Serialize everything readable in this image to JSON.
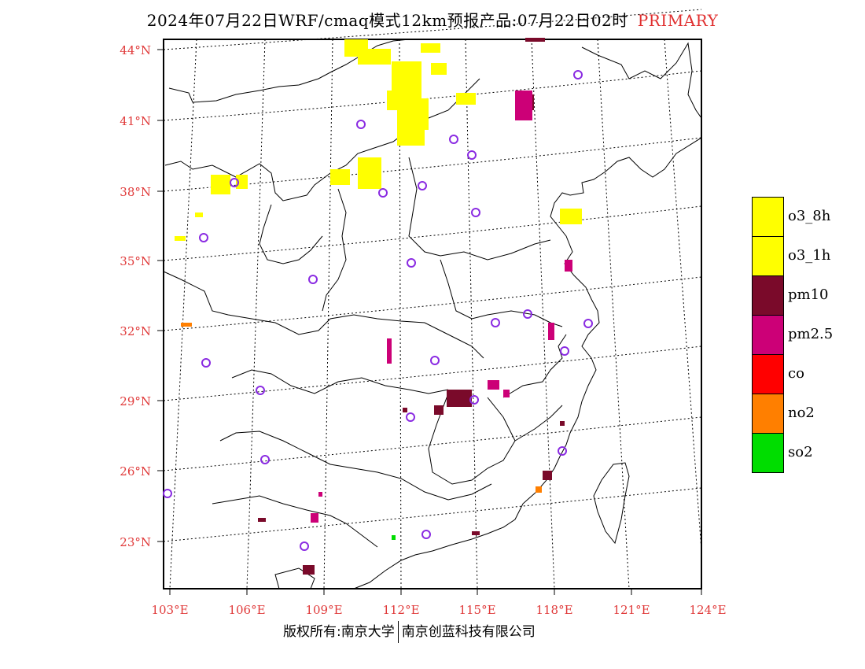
{
  "title": {
    "main": "2024年07月22日WRF/cmaq模式12km预报产品:07月22日02时",
    "tag": "PRIMARY"
  },
  "lat_labels": [
    "44°N",
    "41°N",
    "38°N",
    "35°N",
    "32°N",
    "29°N",
    "26°N",
    "23°N"
  ],
  "lon_labels": [
    "103°E",
    "106°E",
    "109°E",
    "112°E",
    "115°E",
    "118°E",
    "121°E",
    "124°E"
  ],
  "legend": [
    {
      "label": "o3_8h",
      "color": "#ffff00"
    },
    {
      "label": "o3_1h",
      "color": "#ffff00"
    },
    {
      "label": "pm10",
      "color": "#7a0a2a"
    },
    {
      "label": "pm2.5",
      "color": "#cc0077"
    },
    {
      "label": "co",
      "color": "#ff0000"
    },
    {
      "label": "no2",
      "color": "#ff7f00"
    },
    {
      "label": "so2",
      "color": "#00dd00"
    }
  ],
  "copyright": {
    "left": "版权所有:南京大学",
    "right": "南京创蓝科技有限公司"
  },
  "colors": {
    "axis_label": "#e03a3a",
    "station_circle": "#8a2be2"
  }
}
